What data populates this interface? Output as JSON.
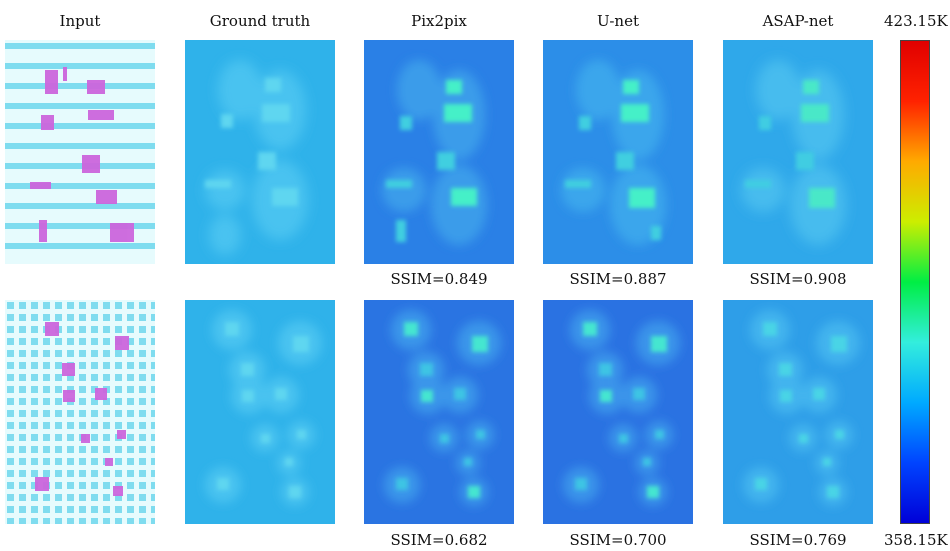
{
  "columns": [
    "Input",
    "Ground truth",
    "Pix2pix",
    "U-net",
    "ASAP-net"
  ],
  "colorbar": {
    "max_label": "423.15K",
    "min_label": "358.15K",
    "colors": [
      "#0000d8",
      "#0044ff",
      "#00aaff",
      "#33eedd",
      "#00ee44",
      "#ccee00",
      "#ffaa00",
      "#ff2200",
      "#e00000"
    ]
  },
  "rows": [
    {
      "ssim": [
        "SSIM=0.849",
        "SSIM=0.887",
        "SSIM=0.908"
      ]
    },
    {
      "ssim": [
        "SSIM=0.682",
        "SSIM=0.700",
        "SSIM=0.769"
      ]
    }
  ],
  "colors": {
    "input_bg": "#e6fbfd",
    "input_line": "#7fdcef",
    "component": "#cc66dd",
    "gt_bg": "#2fb2ea",
    "pix_bg": "#2a80e6",
    "unet_bg": "#2c8ee8",
    "asap_bg": "#2fa8ea",
    "hot": "#44f0c8",
    "halo": "#5fc9f0"
  }
}
